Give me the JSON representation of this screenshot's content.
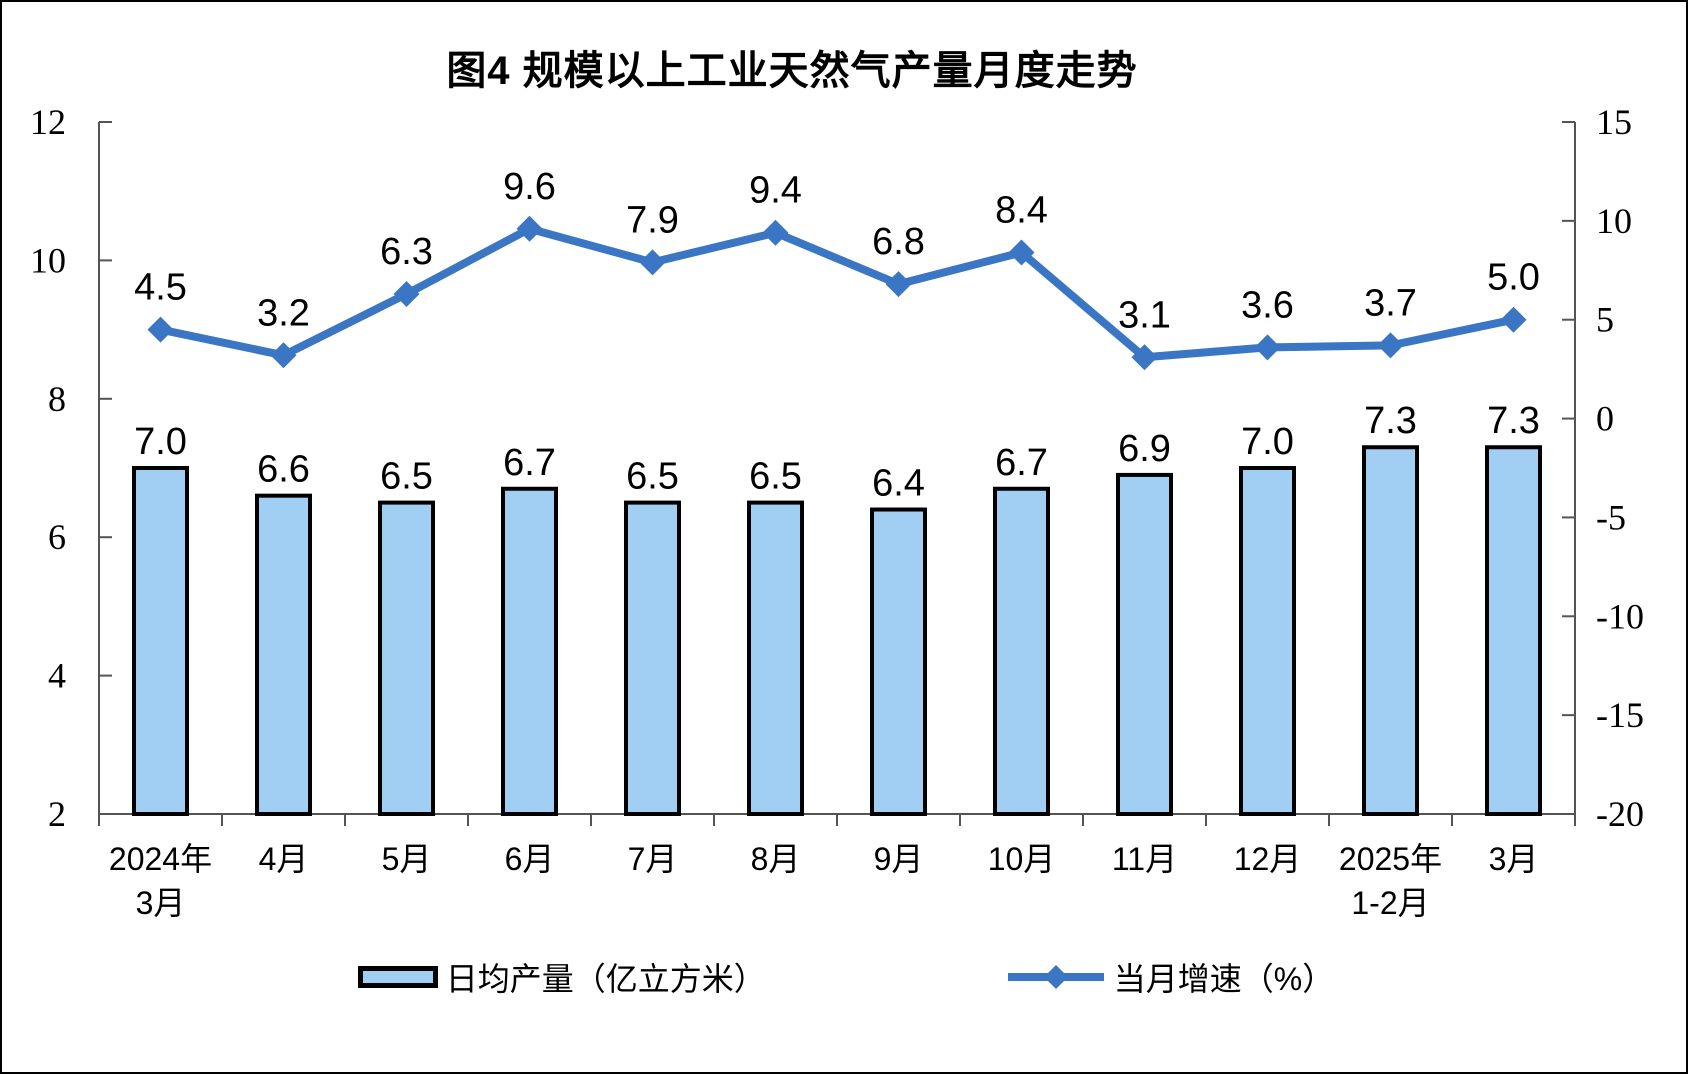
{
  "figure": {
    "title": "图4 规模以上工业天然气产量月度走势"
  },
  "chart_data": {
    "type": "combo-bar-line",
    "title": "图4 规模以上工业天然气产量月度走势",
    "categories": [
      "2024年\n3月",
      "4月",
      "5月",
      "6月",
      "7月",
      "8月",
      "9月",
      "10月",
      "11月",
      "12月",
      "2025年\n1-2月",
      "3月"
    ],
    "series": [
      {
        "name": "日均产量（亿立方米）",
        "legend_label": "日均产量（亿立方米）",
        "type": "bar",
        "axis": "left",
        "values": [
          7.0,
          6.6,
          6.5,
          6.7,
          6.5,
          6.5,
          6.4,
          6.7,
          6.9,
          7.0,
          7.3,
          7.3
        ],
        "color": "#A1CFF4",
        "border_color": "#000000"
      },
      {
        "name": "当月增速（%）",
        "legend_label": "当月增速（%）",
        "type": "line",
        "axis": "right",
        "values": [
          4.5,
          3.2,
          6.3,
          9.6,
          7.9,
          9.4,
          6.8,
          8.4,
          3.1,
          3.6,
          3.7,
          5.0
        ],
        "color": "#3B76C4",
        "marker": "diamond"
      }
    ],
    "left_axis": {
      "min": 2,
      "max": 12,
      "ticks": [
        12,
        10,
        8,
        6,
        4,
        2
      ]
    },
    "right_axis": {
      "min": -20,
      "max": 15,
      "ticks": [
        15,
        10,
        5,
        0,
        -5,
        -10,
        -15,
        -20
      ]
    },
    "grid": false,
    "legend_position": "bottom",
    "axis_color": "#545454",
    "text_color": "#000000"
  }
}
